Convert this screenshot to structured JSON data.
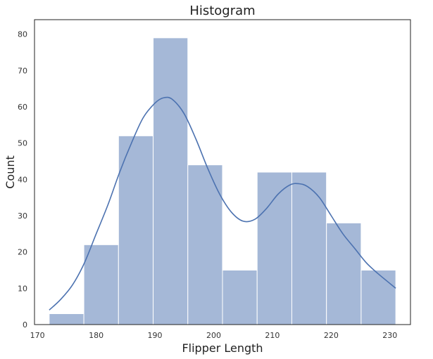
{
  "chart_data": {
    "type": "bar",
    "title": "Histogram",
    "xlabel": "Flipper Length",
    "ylabel": "Count",
    "xlim": [
      169.5,
      233.5
    ],
    "ylim": [
      0,
      84
    ],
    "grid": false,
    "bar_color": "#4c72b0",
    "bar_opacity": 0.5,
    "edge_color": "#ffffff",
    "line_color": "#4c72b0",
    "xticks": [
      170,
      180,
      190,
      200,
      210,
      220,
      230
    ],
    "yticks": [
      0,
      10,
      20,
      30,
      40,
      50,
      60,
      70,
      80
    ],
    "bins": [
      {
        "x0": 172.0,
        "x1": 177.9,
        "count": 3
      },
      {
        "x0": 177.9,
        "x1": 183.8,
        "count": 22
      },
      {
        "x0": 183.8,
        "x1": 189.7,
        "count": 52
      },
      {
        "x0": 189.7,
        "x1": 195.6,
        "count": 79
      },
      {
        "x0": 195.6,
        "x1": 201.5,
        "count": 44
      },
      {
        "x0": 201.5,
        "x1": 207.4,
        "count": 15
      },
      {
        "x0": 207.4,
        "x1": 213.3,
        "count": 42
      },
      {
        "x0": 213.3,
        "x1": 219.2,
        "count": 42
      },
      {
        "x0": 219.2,
        "x1": 225.1,
        "count": 28
      },
      {
        "x0": 225.1,
        "x1": 231.0,
        "count": 15
      }
    ],
    "kde": {
      "x": [
        172,
        174,
        176,
        178,
        180,
        182,
        184,
        186,
        188,
        190,
        191.5,
        193,
        195,
        197,
        199,
        201,
        203,
        205,
        207,
        209,
        211,
        213,
        214.5,
        216,
        218,
        220,
        222,
        224,
        226,
        228,
        231
      ],
      "y": [
        4,
        7,
        11,
        17,
        25,
        33,
        42,
        50,
        57,
        61,
        62.5,
        62,
        58,
        51,
        43,
        36,
        31,
        28.5,
        29,
        32,
        36,
        38.5,
        38.8,
        38,
        35,
        30,
        25,
        21,
        17,
        14,
        10
      ]
    }
  }
}
